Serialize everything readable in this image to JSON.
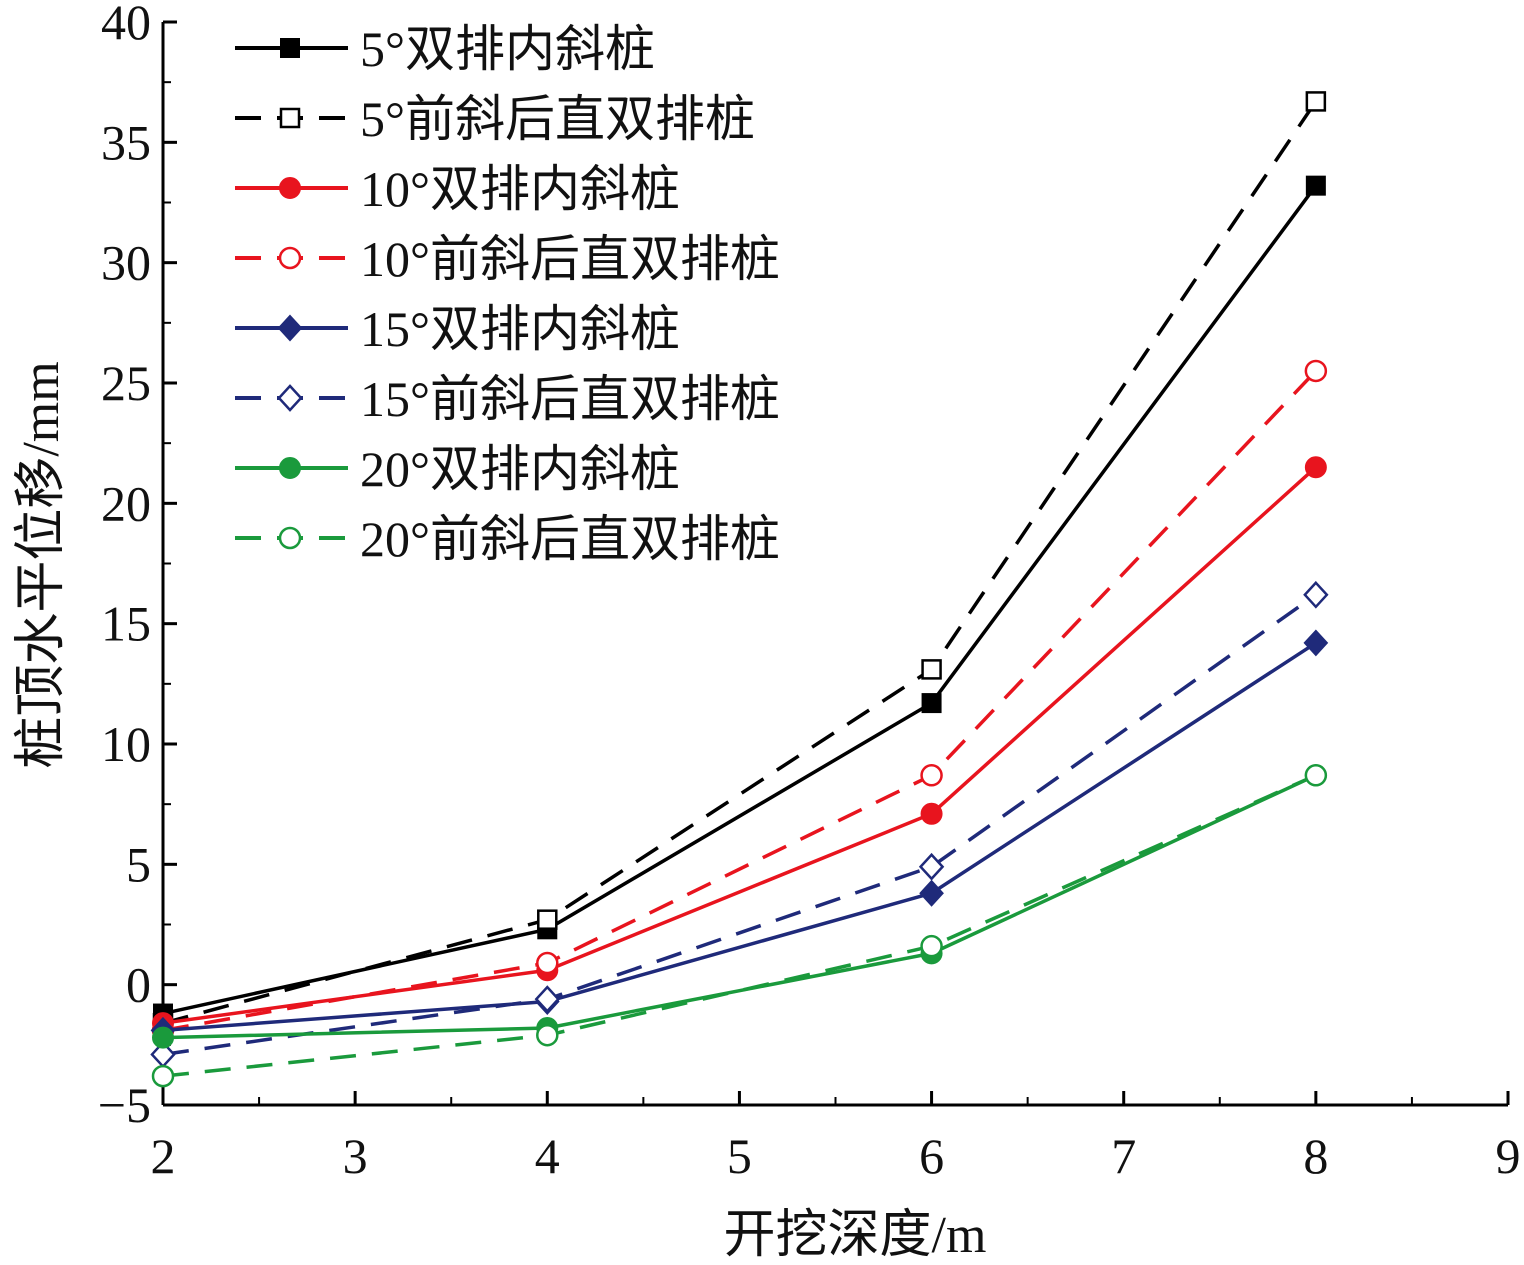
{
  "chart_data": {
    "type": "line",
    "xlabel": "开挖深度/m",
    "ylabel": "桩顶水平位移/mm",
    "xlim": [
      2,
      9
    ],
    "ylim": [
      -5,
      40
    ],
    "xticks": [
      2,
      3,
      4,
      5,
      6,
      7,
      8,
      9
    ],
    "yticks": [
      -5,
      0,
      5,
      10,
      15,
      20,
      25,
      30,
      35,
      40
    ],
    "x": [
      2,
      4,
      6,
      8
    ],
    "legend_position": "top-left",
    "grid": false,
    "series": [
      {
        "name": "5°双排内斜桩",
        "values": [
          -1.2,
          2.3,
          11.7,
          33.2
        ],
        "color": "#000000",
        "dash": "solid",
        "marker": "square",
        "filled": true
      },
      {
        "name": "5°前斜后直双排桩",
        "values": [
          -1.6,
          2.7,
          13.1,
          36.7
        ],
        "color": "#000000",
        "dash": "dashed",
        "marker": "square",
        "filled": false
      },
      {
        "name": "10°双排内斜桩",
        "values": [
          -1.6,
          0.6,
          7.1,
          21.5
        ],
        "color": "#e8141e",
        "dash": "solid",
        "marker": "circle",
        "filled": true
      },
      {
        "name": "10°前斜后直双排桩",
        "values": [
          -1.9,
          0.9,
          8.7,
          25.5
        ],
        "color": "#e8141e",
        "dash": "dashed",
        "marker": "circle",
        "filled": false
      },
      {
        "name": "15°双排内斜桩",
        "values": [
          -1.9,
          -0.7,
          3.8,
          14.2
        ],
        "color": "#1f2a7a",
        "dash": "solid",
        "marker": "diamond",
        "filled": true
      },
      {
        "name": "15°前斜后直双排桩",
        "values": [
          -2.9,
          -0.6,
          4.9,
          16.2
        ],
        "color": "#1f2a7a",
        "dash": "dashed",
        "marker": "diamond",
        "filled": false
      },
      {
        "name": "20°双排内斜桩",
        "values": [
          -2.2,
          -1.8,
          1.3,
          8.7
        ],
        "color": "#1a9a3c",
        "dash": "solid",
        "marker": "circle",
        "filled": true
      },
      {
        "name": "20°前斜后直双排桩",
        "values": [
          -3.8,
          -2.1,
          1.6,
          8.7
        ],
        "color": "#1a9a3c",
        "dash": "dashed",
        "marker": "circle",
        "filled": false
      }
    ]
  }
}
